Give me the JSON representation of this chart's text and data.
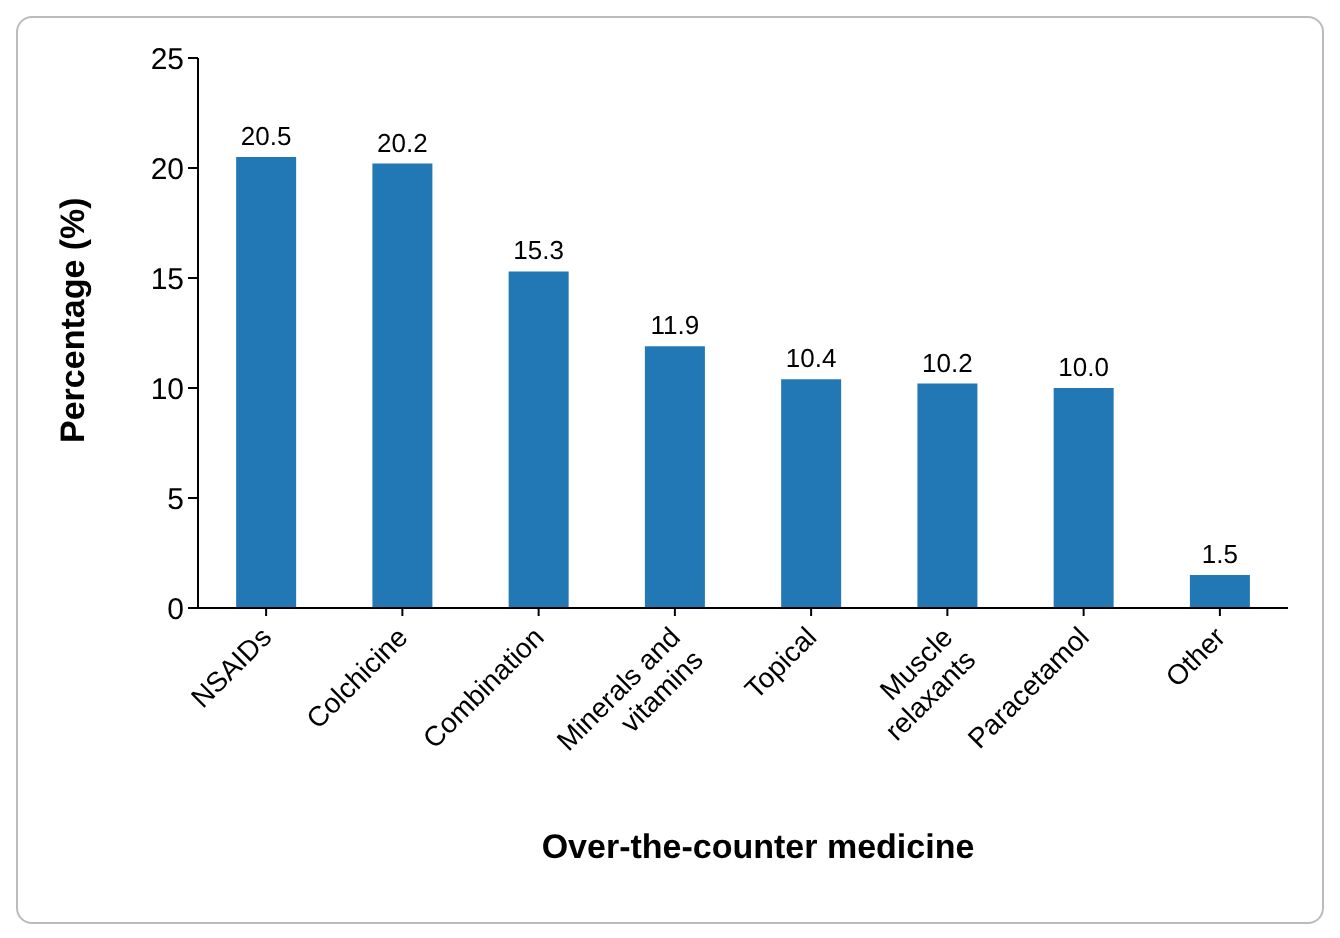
{
  "chart_data": {
    "type": "bar",
    "xlabel": "Over-the-counter medicine",
    "ylabel": "Percentage (%)",
    "categories": [
      "NSAIDs",
      "Colchicine",
      "Combination",
      "Minerals and vitamins",
      "Topical",
      "Muscle relaxants",
      "Paracetamol",
      "Other"
    ],
    "values": [
      20.5,
      20.2,
      15.3,
      11.9,
      10.4,
      10.2,
      10.0,
      1.5
    ],
    "value_labels": [
      "20.5",
      "20.2",
      "15.3",
      "11.9",
      "10.4",
      "10.2",
      "10.0",
      "1.5"
    ],
    "color": "#2278b5",
    "ylim": [
      0,
      25
    ],
    "yticks": [
      0,
      5,
      10,
      15,
      20,
      25
    ],
    "grid": false
  }
}
